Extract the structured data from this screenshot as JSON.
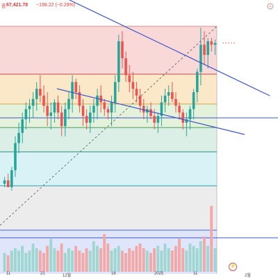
{
  "header": {
    "symbol_glyph": "종",
    "price": "67,421.78",
    "change": "−198.22 (−0.29%)",
    "settings_icon": "gear-icon"
  },
  "axis": {
    "x_ticks": [
      "11",
      "21",
      "12월",
      "16",
      "2025",
      "11",
      "2월"
    ]
  },
  "colors": {
    "up": "#26a69a",
    "down": "#ef5350",
    "trendline": "#3f55c9"
  },
  "chart_data": {
    "type": "candlestick",
    "series": [
      {
        "name": "price",
        "ohlc": [
          [
            62,
            60,
            66,
            64
          ],
          [
            64,
            62,
            68,
            60
          ],
          [
            60,
            58,
            72,
            70
          ],
          [
            70,
            66,
            90,
            86
          ],
          [
            86,
            80,
            98,
            92
          ],
          [
            92,
            86,
            104,
            100
          ],
          [
            100,
            94,
            110,
            106
          ],
          [
            106,
            98,
            112,
            108
          ],
          [
            108,
            101,
            116,
            112
          ],
          [
            112,
            105,
            122,
            118
          ],
          [
            118,
            110,
            126,
            114
          ],
          [
            114,
            104,
            120,
            108
          ],
          [
            108,
            96,
            116,
            102
          ],
          [
            102,
            94,
            110,
            104
          ],
          [
            104,
            98,
            112,
            110
          ],
          [
            110,
            100,
            114,
            104
          ],
          [
            104,
            90,
            108,
            96
          ],
          [
            96,
            90,
            110,
            106
          ],
          [
            106,
            100,
            116,
            112
          ],
          [
            112,
            104,
            126,
            122
          ],
          [
            122,
            112,
            124,
            116
          ],
          [
            116,
            104,
            120,
            108
          ],
          [
            108,
            96,
            112,
            102
          ],
          [
            102,
            94,
            106,
            98
          ],
          [
            98,
            92,
            108,
            104
          ],
          [
            104,
            98,
            112,
            108
          ],
          [
            108,
            100,
            118,
            114
          ],
          [
            114,
            104,
            120,
            110
          ],
          [
            110,
            102,
            112,
            106
          ],
          [
            106,
            100,
            108,
            104
          ],
          [
            104,
            96,
            114,
            110
          ],
          [
            110,
            104,
            126,
            122
          ],
          [
            122,
            116,
            150,
            146
          ],
          [
            146,
            130,
            152,
            136
          ],
          [
            136,
            122,
            140,
            126
          ],
          [
            126,
            116,
            132,
            122
          ],
          [
            122,
            112,
            128,
            118
          ],
          [
            118,
            110,
            122,
            114
          ],
          [
            114,
            104,
            118,
            108
          ],
          [
            108,
            100,
            112,
            104
          ],
          [
            104,
            98,
            108,
            106
          ],
          [
            106,
            100,
            110,
            102
          ],
          [
            102,
            94,
            106,
            98
          ],
          [
            98,
            92,
            104,
            102
          ],
          [
            102,
            96,
            114,
            110
          ],
          [
            110,
            104,
            118,
            114
          ],
          [
            114,
            108,
            120,
            116
          ],
          [
            116,
            110,
            122,
            112
          ],
          [
            112,
            104,
            116,
            108
          ],
          [
            108,
            100,
            110,
            104
          ],
          [
            104,
            94,
            106,
            98
          ],
          [
            98,
            90,
            104,
            100
          ],
          [
            100,
            94,
            108,
            106
          ],
          [
            106,
            100,
            118,
            116
          ],
          [
            116,
            110,
            130,
            128
          ],
          [
            128,
            120,
            154,
            144
          ],
          [
            144,
            132,
            152,
            138
          ],
          [
            138,
            130,
            148,
            146
          ],
          [
            146,
            140,
            148,
            144
          ],
          [
            144,
            138,
            147,
            145
          ]
        ],
        "volume": [
          8,
          7,
          9,
          10,
          9,
          11,
          8,
          9,
          12,
          10,
          9,
          8,
          11,
          14,
          10,
          9,
          12,
          8,
          10,
          9,
          11,
          9,
          8,
          10,
          9,
          13,
          11,
          10,
          16,
          12,
          9,
          10,
          11,
          9,
          8,
          10,
          9,
          11,
          12,
          10,
          9,
          8,
          10,
          11,
          9,
          12,
          10,
          9,
          11,
          14,
          10,
          9,
          12,
          11,
          10,
          13,
          15,
          11,
          28,
          10
        ]
      }
    ],
    "fib_levels": [
      1,
      0.786,
      0.618,
      0.5,
      0.382,
      0.236,
      0
    ],
    "grid": false,
    "legend": "top-left"
  }
}
